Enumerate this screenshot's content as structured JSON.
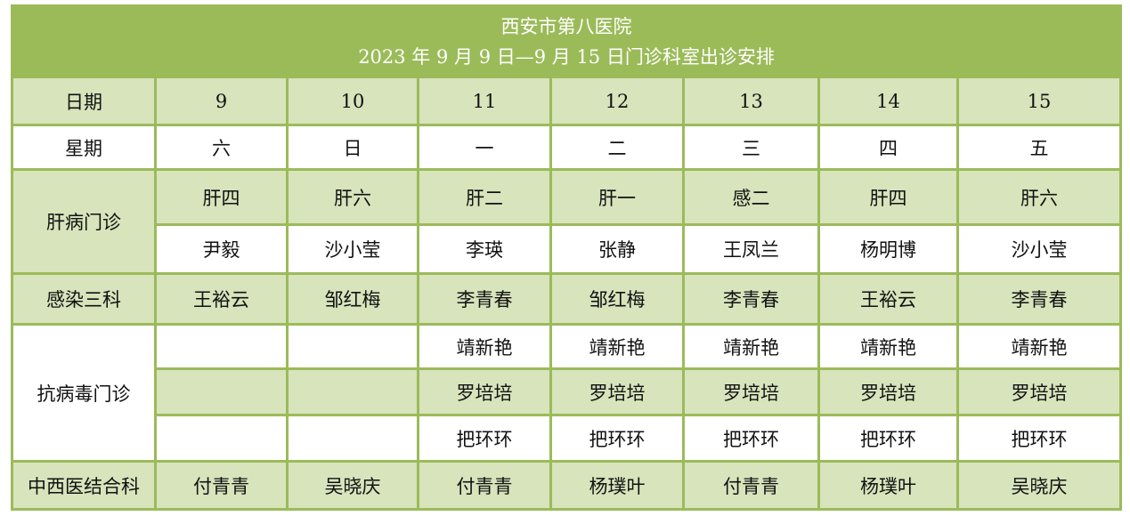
{
  "title": {
    "line1": "西安市第八医院",
    "line2": "2023 年 9 月 9 日—9 月 15 日门诊科室出诊安排"
  },
  "header": {
    "date_label": "日期",
    "weekday_label": "星期",
    "dates": [
      "9",
      "10",
      "11",
      "12",
      "13",
      "14",
      "15"
    ],
    "weekdays": [
      "六",
      "日",
      "一",
      "二",
      "三",
      "四",
      "五"
    ]
  },
  "departments": {
    "liver": {
      "name": "肝病门诊",
      "rooms": [
        "肝四",
        "肝六",
        "肝二",
        "肝一",
        "感二",
        "肝四",
        "肝六"
      ],
      "doctors": [
        "尹毅",
        "沙小莹",
        "李瑛",
        "张静",
        "王凤兰",
        "杨明博",
        "沙小莹"
      ]
    },
    "infection3": {
      "name": "感染三科",
      "doctors": [
        "王裕云",
        "邹红梅",
        "李青春",
        "邹红梅",
        "李青春",
        "王裕云",
        "李青春"
      ]
    },
    "antiviral": {
      "name": "抗病毒门诊",
      "rows": [
        [
          "",
          "",
          "靖新艳",
          "靖新艳",
          "靖新艳",
          "靖新艳",
          "靖新艳"
        ],
        [
          "",
          "",
          "罗培培",
          "罗培培",
          "罗培培",
          "罗培培",
          "罗培培"
        ],
        [
          "",
          "",
          "把环环",
          "把环环",
          "把环环",
          "把环环",
          "把环环"
        ]
      ]
    },
    "integrated": {
      "name": "中西医结合科",
      "doctors": [
        "付青青",
        "吴晓庆",
        "付青青",
        "杨璞叶",
        "付青青",
        "杨璞叶",
        "吴晓庆"
      ]
    }
  },
  "colors": {
    "header_green": "#9bbb59",
    "light_green": "#d7e4bc"
  }
}
